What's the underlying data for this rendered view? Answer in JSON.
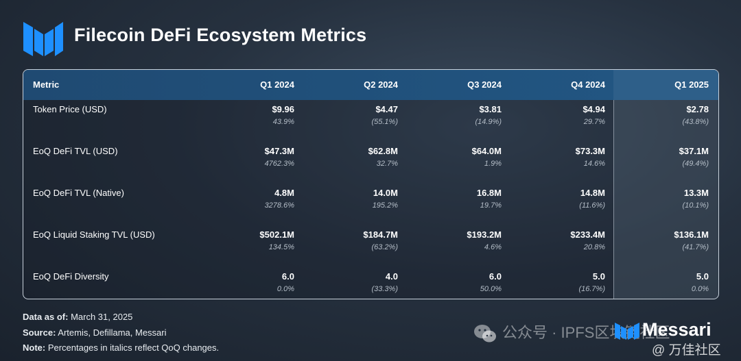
{
  "header": {
    "title": "Filecoin DeFi Ecosystem Metrics"
  },
  "table": {
    "columns": [
      "Metric",
      "Q1 2024",
      "Q2 2024",
      "Q3 2024",
      "Q4 2024",
      "Q1 2025"
    ],
    "rows": [
      {
        "label": "Token Price (USD)",
        "cells": [
          {
            "value": "$9.96",
            "change": "43.9%"
          },
          {
            "value": "$4.47",
            "change": "(55.1%)"
          },
          {
            "value": "$3.81",
            "change": "(14.9%)"
          },
          {
            "value": "$4.94",
            "change": "29.7%"
          },
          {
            "value": "$2.78",
            "change": "(43.8%)"
          }
        ]
      },
      {
        "label": "EoQ DeFi TVL (USD)",
        "cells": [
          {
            "value": "$47.3M",
            "change": "4762.3%"
          },
          {
            "value": "$62.8M",
            "change": "32.7%"
          },
          {
            "value": "$64.0M",
            "change": "1.9%"
          },
          {
            "value": "$73.3M",
            "change": "14.6%"
          },
          {
            "value": "$37.1M",
            "change": "(49.4%)"
          }
        ]
      },
      {
        "label": "EoQ DeFi TVL (Native)",
        "cells": [
          {
            "value": "4.8M",
            "change": "3278.6%"
          },
          {
            "value": "14.0M",
            "change": "195.2%"
          },
          {
            "value": "16.8M",
            "change": "19.7%"
          },
          {
            "value": "14.8M",
            "change": "(11.6%)"
          },
          {
            "value": "13.3M",
            "change": "(10.1%)"
          }
        ]
      },
      {
        "label": "EoQ Liquid Staking TVL (USD)",
        "cells": [
          {
            "value": "$502.1M",
            "change": "134.5%"
          },
          {
            "value": "$184.7M",
            "change": "(63.2%)"
          },
          {
            "value": "$193.2M",
            "change": "4.6%"
          },
          {
            "value": "$233.4M",
            "change": "20.8%"
          },
          {
            "value": "$136.1M",
            "change": "(41.7%)"
          }
        ]
      },
      {
        "label": "EoQ DeFi Diversity",
        "cells": [
          {
            "value": "6.0",
            "change": "0.0%"
          },
          {
            "value": "4.0",
            "change": "(33.3%)"
          },
          {
            "value": "6.0",
            "change": "50.0%"
          },
          {
            "value": "5.0",
            "change": "(16.7%)"
          },
          {
            "value": "5.0",
            "change": "0.0%"
          }
        ]
      }
    ]
  },
  "footer": {
    "data_as_of_label": "Data as of:",
    "data_as_of_value": " March 31, 2025",
    "source_label": "Source:",
    "source_value": " Artemis, Defillama, Messari",
    "note_label": "Note:",
    "note_value": " Percentages in italics reflect QoQ changes."
  },
  "watermark": {
    "text": "公众号 · IPFS区块链社区",
    "brand": "Messari",
    "community": "@ 万佳社区"
  },
  "colors": {
    "accent_blue": "#1e90ff",
    "header_bg": "#1f4a72",
    "highlight_col": "#2e5f89"
  },
  "icons": {
    "logo": "messari-logo-icon",
    "wechat": "wechat-icon"
  }
}
